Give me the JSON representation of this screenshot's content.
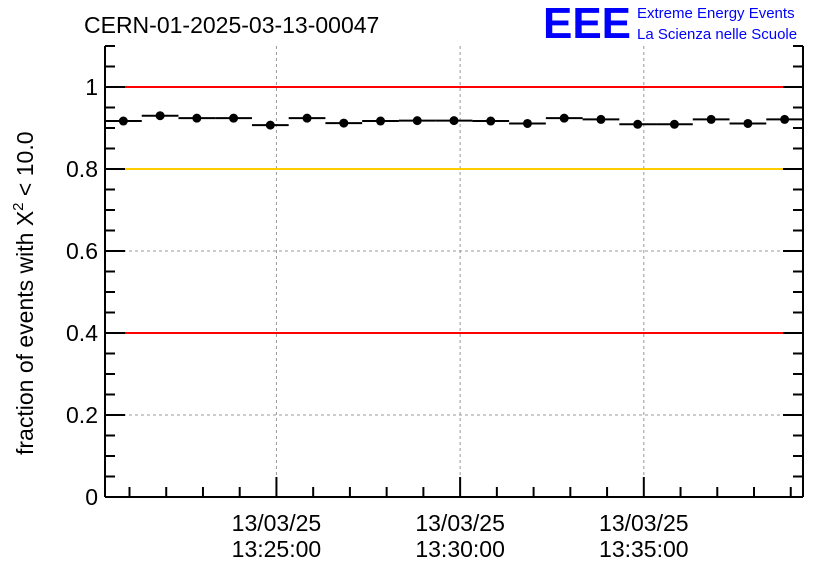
{
  "chart_data": {
    "type": "scatter",
    "title": "CERN-01-2025-03-13-00047",
    "logo": {
      "mark": "EEE",
      "line1": "Extreme Energy Events",
      "line2": "La Scienza nelle Scuole",
      "color": "#0000ff"
    },
    "ylabel_prefix": "fraction of events with ",
    "ylabel_symbol": "X",
    "ylabel_sup": "2",
    "ylabel_suffix": " < 10.0",
    "xlabel": "",
    "x_unit": "minutes since 13:20:20",
    "xlim": [
      0,
      19
    ],
    "ylim": [
      0,
      1.1
    ],
    "grid": true,
    "y_ticks": [
      0,
      0.2,
      0.4,
      0.6,
      0.8,
      1
    ],
    "y_tick_labels": [
      "0",
      "0.2",
      "0.4",
      "0.6",
      "0.8",
      "1"
    ],
    "x_ticks": [
      {
        "x": 4.6667,
        "date": "13/03/25",
        "time": "13:25:00"
      },
      {
        "x": 9.6667,
        "date": "13/03/25",
        "time": "13:30:00"
      },
      {
        "x": 14.6667,
        "date": "13/03/25",
        "time": "13:35:00"
      }
    ],
    "reference_lines": [
      {
        "y": 1.0,
        "color": "#ff0000"
      },
      {
        "y": 0.8,
        "color": "#ffcc00"
      },
      {
        "y": 0.4,
        "color": "#ff0000"
      }
    ],
    "bin_width": 1,
    "x": [
      0.5,
      1.5,
      2.5,
      3.5,
      4.5,
      5.5,
      6.5,
      7.5,
      8.5,
      9.5,
      10.5,
      11.5,
      12.5,
      13.5,
      14.5,
      15.5,
      16.5,
      17.5,
      18.5
    ],
    "values": [
      0.917,
      0.93,
      0.924,
      0.924,
      0.907,
      0.924,
      0.912,
      0.917,
      0.918,
      0.918,
      0.917,
      0.911,
      0.924,
      0.921,
      0.909,
      0.909,
      0.921,
      0.911,
      0.921
    ]
  }
}
